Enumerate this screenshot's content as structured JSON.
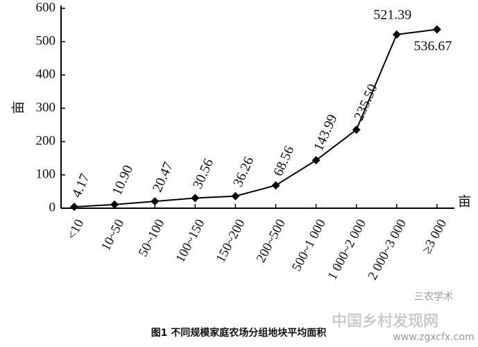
{
  "chart_data": {
    "type": "line",
    "title": "图1 不同规模家庭农场分组地块平均面积",
    "y_label": "亩",
    "x_label": "亩",
    "categories": [
      "<10",
      "10~50",
      "50~100",
      "100~150",
      "150~200",
      "200~500",
      "500~1 000",
      "1 000~2 000",
      "2 000~3 000",
      "≥3 000"
    ],
    "series": [
      {
        "name": "平均面积",
        "color": "#000000",
        "values": [
          4.17,
          10.9,
          20.47,
          30.56,
          36.26,
          68.56,
          143.99,
          235.5,
          521.39,
          536.67
        ],
        "value_labels": [
          "4.17",
          "10.90",
          "20.47",
          "30.56",
          "36.26",
          "68.56",
          "143.99",
          "235.50",
          "521.39",
          "536.67"
        ]
      }
    ],
    "ylim": [
      0,
      600
    ],
    "yticks": [
      0,
      100,
      200,
      300,
      400,
      500,
      600
    ],
    "watermark_account": "三农学术",
    "watermark_site": "中国乡村发现网",
    "watermark_url": "www.zgxcfx.com"
  }
}
